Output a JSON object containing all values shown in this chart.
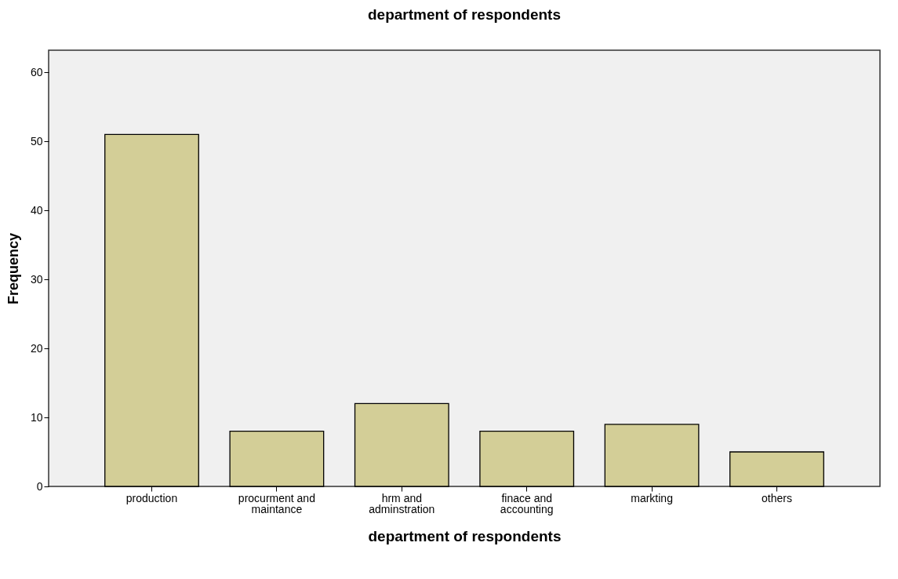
{
  "chart_data": {
    "type": "bar",
    "title": "department of respondents",
    "xlabel": "department of respondents",
    "ylabel": "Frequency",
    "categories": [
      "production",
      "procurment and maintance",
      "hrm and adminstration",
      "finace and accounting",
      "markting",
      "others"
    ],
    "values": [
      51,
      8,
      12,
      8,
      9,
      5
    ],
    "color": "#d3ce97",
    "ylim": [
      0,
      63.2
    ],
    "yticks": [
      0,
      10,
      20,
      30,
      40,
      50,
      60
    ],
    "grid": false
  }
}
